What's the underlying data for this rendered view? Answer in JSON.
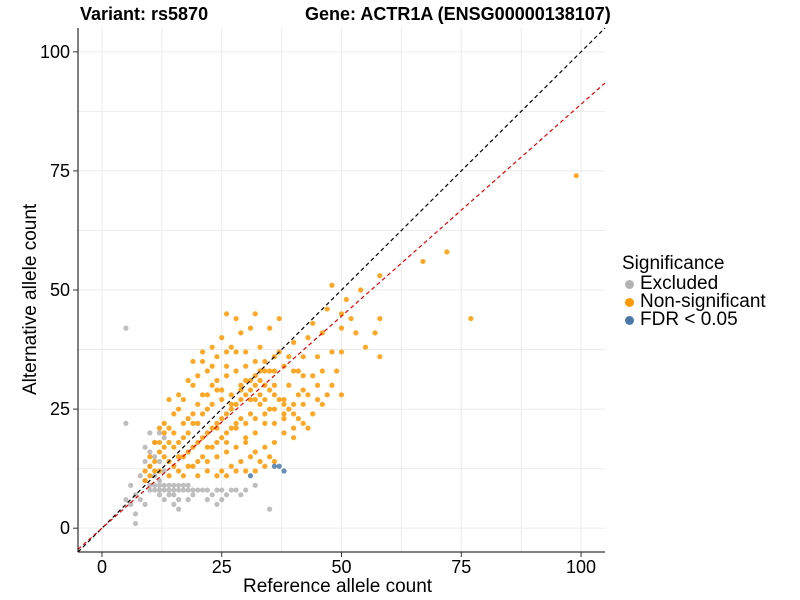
{
  "chart_data": {
    "type": "scatter",
    "title_left": "Variant: rs5870",
    "title_right": "Gene: ACTR1A (ENSG00000138107)",
    "xlabel": "Reference allele count",
    "ylabel": "Alternative allele count",
    "xlim": [
      -5,
      105
    ],
    "ylim": [
      -5,
      105
    ],
    "xticks": [
      0,
      25,
      50,
      75,
      100
    ],
    "yticks": [
      0,
      25,
      50,
      75,
      100
    ],
    "grid": true,
    "legend": {
      "title": "Significance",
      "placement": "right",
      "items": [
        {
          "label": "Excluded",
          "color": "#b3b3b3"
        },
        {
          "label": "Non-significant",
          "color": "#ff9900"
        },
        {
          "label": "FDR < 0.05",
          "color": "#4a79a9"
        }
      ]
    },
    "reference_lines": [
      {
        "name": "identity",
        "slope": 1.0,
        "intercept": 0,
        "color": "#000000",
        "dash": "dashed"
      },
      {
        "name": "fitted",
        "slope": 0.89,
        "intercept": 0,
        "color": "#ee0000",
        "dash": "dashed"
      }
    ],
    "series": [
      {
        "name": "Excluded",
        "color": "#b3b3b3",
        "points": [
          [
            5,
            42
          ],
          [
            5,
            22
          ],
          [
            5,
            6
          ],
          [
            6,
            5
          ],
          [
            7,
            3
          ],
          [
            7,
            1
          ],
          [
            8,
            11
          ],
          [
            6,
            9
          ],
          [
            7,
            7
          ],
          [
            8,
            6
          ],
          [
            9,
            5
          ],
          [
            9,
            10
          ],
          [
            10,
            8
          ],
          [
            10,
            9
          ],
          [
            11,
            9
          ],
          [
            12,
            8
          ],
          [
            12,
            9
          ],
          [
            13,
            9
          ],
          [
            13,
            8
          ],
          [
            14,
            9
          ],
          [
            14,
            8
          ],
          [
            15,
            9
          ],
          [
            15,
            8
          ],
          [
            16,
            9
          ],
          [
            16,
            8
          ],
          [
            17,
            9
          ],
          [
            17,
            8
          ],
          [
            18,
            9
          ],
          [
            18,
            8
          ],
          [
            19,
            8
          ],
          [
            20,
            8
          ],
          [
            21,
            8
          ],
          [
            22,
            8
          ],
          [
            15,
            7
          ],
          [
            16,
            6
          ],
          [
            15,
            5
          ],
          [
            16,
            4
          ],
          [
            11,
            11
          ],
          [
            12,
            10
          ],
          [
            9,
            14
          ],
          [
            10,
            16
          ],
          [
            9,
            17
          ],
          [
            11,
            15
          ],
          [
            10,
            13
          ],
          [
            13,
            12
          ],
          [
            12,
            14
          ],
          [
            10,
            20
          ],
          [
            11,
            18
          ],
          [
            12,
            20
          ],
          [
            13,
            19
          ],
          [
            14,
            7
          ],
          [
            18,
            6
          ],
          [
            19,
            7
          ],
          [
            22,
            6
          ],
          [
            23,
            7
          ],
          [
            24,
            8
          ],
          [
            25,
            8
          ],
          [
            26,
            7
          ],
          [
            27,
            8
          ],
          [
            28,
            8
          ],
          [
            29,
            7
          ],
          [
            30,
            8
          ],
          [
            32,
            9
          ],
          [
            25,
            6
          ],
          [
            24,
            5
          ],
          [
            35,
            4
          ],
          [
            12,
            7
          ],
          [
            11,
            8
          ],
          [
            13,
            6
          ]
        ]
      },
      {
        "name": "Non-significant",
        "color": "#ff9900",
        "points": [
          [
            99,
            74
          ],
          [
            77,
            44
          ],
          [
            72,
            58
          ],
          [
            67,
            56
          ],
          [
            58,
            53
          ],
          [
            58,
            44
          ],
          [
            58,
            36
          ],
          [
            57,
            41
          ],
          [
            55,
            38
          ],
          [
            54,
            50
          ],
          [
            53,
            41
          ],
          [
            52,
            44
          ],
          [
            50,
            42
          ],
          [
            48,
            51
          ],
          [
            50,
            45
          ],
          [
            51,
            48
          ],
          [
            50,
            37
          ],
          [
            49,
            33
          ],
          [
            48,
            37
          ],
          [
            47,
            46
          ],
          [
            46,
            41
          ],
          [
            45,
            36
          ],
          [
            44,
            43
          ],
          [
            43,
            40
          ],
          [
            42,
            36
          ],
          [
            42,
            32
          ],
          [
            41,
            28
          ],
          [
            40,
            39
          ],
          [
            40,
            33
          ],
          [
            39,
            30
          ],
          [
            38,
            34
          ],
          [
            38,
            27
          ],
          [
            37,
            44
          ],
          [
            36,
            36
          ],
          [
            36,
            30
          ],
          [
            35,
            42
          ],
          [
            35,
            25
          ],
          [
            34,
            33
          ],
          [
            34,
            22
          ],
          [
            33,
            38
          ],
          [
            33,
            28
          ],
          [
            32,
            45
          ],
          [
            32,
            35
          ],
          [
            32,
            20
          ],
          [
            31,
            42
          ],
          [
            31,
            27
          ],
          [
            30,
            37
          ],
          [
            30,
            19
          ],
          [
            29,
            41
          ],
          [
            29,
            30
          ],
          [
            28,
            44
          ],
          [
            28,
            22
          ],
          [
            27,
            38
          ],
          [
            27,
            26
          ],
          [
            26,
            45
          ],
          [
            26,
            34
          ],
          [
            26,
            18
          ],
          [
            25,
            40
          ],
          [
            25,
            29
          ],
          [
            24,
            36
          ],
          [
            24,
            21
          ],
          [
            23,
            38
          ],
          [
            23,
            30
          ],
          [
            22,
            33
          ],
          [
            22,
            25
          ],
          [
            22,
            17
          ],
          [
            21,
            35
          ],
          [
            21,
            28
          ],
          [
            20,
            32
          ],
          [
            20,
            22
          ],
          [
            20,
            14
          ],
          [
            19,
            30
          ],
          [
            19,
            24
          ],
          [
            18,
            31
          ],
          [
            18,
            20
          ],
          [
            18,
            13
          ],
          [
            17,
            27
          ],
          [
            17,
            22
          ],
          [
            16,
            28
          ],
          [
            16,
            18
          ],
          [
            15,
            24
          ],
          [
            15,
            17
          ],
          [
            14,
            27
          ],
          [
            14,
            21
          ],
          [
            14,
            14
          ],
          [
            13,
            22
          ],
          [
            13,
            17
          ],
          [
            12,
            21
          ],
          [
            12,
            16
          ],
          [
            11,
            18
          ],
          [
            11,
            14
          ],
          [
            10,
            15
          ],
          [
            10,
            11
          ],
          [
            9,
            12
          ],
          [
            16,
            12
          ],
          [
            17,
            15
          ],
          [
            18,
            16
          ],
          [
            19,
            17
          ],
          [
            20,
            18
          ],
          [
            21,
            19
          ],
          [
            22,
            20
          ],
          [
            23,
            21
          ],
          [
            24,
            22
          ],
          [
            25,
            23
          ],
          [
            26,
            24
          ],
          [
            27,
            25
          ],
          [
            28,
            26
          ],
          [
            29,
            27
          ],
          [
            30,
            28
          ],
          [
            31,
            29
          ],
          [
            32,
            30
          ],
          [
            33,
            31
          ],
          [
            34,
            30
          ],
          [
            35,
            29
          ],
          [
            36,
            28
          ],
          [
            37,
            27
          ],
          [
            38,
            26
          ],
          [
            39,
            25
          ],
          [
            40,
            24
          ],
          [
            41,
            23
          ],
          [
            42,
            22
          ],
          [
            43,
            21
          ],
          [
            44,
            24
          ],
          [
            45,
            27
          ],
          [
            46,
            26
          ],
          [
            47,
            28
          ],
          [
            22,
            14
          ],
          [
            24,
            15
          ],
          [
            26,
            16
          ],
          [
            28,
            17
          ],
          [
            30,
            18
          ],
          [
            32,
            16
          ],
          [
            34,
            17
          ],
          [
            36,
            18
          ],
          [
            38,
            20
          ],
          [
            40,
            19
          ],
          [
            25,
            12
          ],
          [
            27,
            13
          ],
          [
            29,
            14
          ],
          [
            31,
            15
          ],
          [
            33,
            14
          ],
          [
            35,
            15
          ],
          [
            24,
            18
          ],
          [
            26,
            20
          ],
          [
            28,
            21
          ],
          [
            30,
            22
          ],
          [
            32,
            23
          ],
          [
            34,
            24
          ],
          [
            36,
            22
          ],
          [
            38,
            23
          ],
          [
            40,
            21
          ],
          [
            23,
            26
          ],
          [
            25,
            27
          ],
          [
            27,
            28
          ],
          [
            29,
            29
          ],
          [
            31,
            31
          ],
          [
            33,
            33
          ],
          [
            21,
            24
          ],
          [
            19,
            22
          ],
          [
            17,
            19
          ],
          [
            15,
            20
          ],
          [
            13,
            15
          ],
          [
            12,
            12
          ],
          [
            14,
            11
          ],
          [
            16,
            15
          ],
          [
            20,
            26
          ],
          [
            22,
            28
          ],
          [
            24,
            31
          ],
          [
            26,
            32
          ],
          [
            28,
            33
          ],
          [
            30,
            34
          ],
          [
            32,
            32
          ],
          [
            34,
            35
          ],
          [
            36,
            33
          ],
          [
            44,
            32
          ],
          [
            46,
            33
          ],
          [
            48,
            30
          ],
          [
            50,
            28
          ],
          [
            43,
            28
          ],
          [
            42,
            26
          ],
          [
            41,
            33
          ],
          [
            39,
            36
          ],
          [
            37,
            37
          ],
          [
            35,
            33
          ],
          [
            33,
            26
          ],
          [
            31,
            24
          ],
          [
            29,
            23
          ],
          [
            27,
            21
          ],
          [
            25,
            19
          ],
          [
            23,
            17
          ],
          [
            21,
            15
          ],
          [
            19,
            13
          ],
          [
            17,
            11
          ],
          [
            20,
            11
          ],
          [
            22,
            12
          ],
          [
            24,
            11
          ],
          [
            26,
            11
          ],
          [
            28,
            12
          ],
          [
            30,
            12
          ],
          [
            32,
            12
          ],
          [
            34,
            13
          ],
          [
            36,
            14
          ],
          [
            15,
            13
          ],
          [
            18,
            23
          ],
          [
            16,
            25
          ],
          [
            14,
            18
          ],
          [
            13,
            20
          ],
          [
            12,
            18
          ],
          [
            11,
            12
          ],
          [
            10,
            13
          ],
          [
            9,
            10
          ],
          [
            19,
            35
          ],
          [
            21,
            37
          ],
          [
            23,
            34
          ],
          [
            24,
            29
          ],
          [
            26,
            37
          ],
          [
            28,
            37
          ],
          [
            30,
            31
          ],
          [
            32,
            27
          ],
          [
            34,
            27
          ],
          [
            36,
            25
          ],
          [
            38,
            24
          ],
          [
            40,
            26
          ],
          [
            42,
            29
          ],
          [
            45,
            30
          ]
        ]
      },
      {
        "name": "FDR < 0.05",
        "color": "#4a79a9",
        "points": [
          [
            31,
            11
          ],
          [
            36,
            13
          ],
          [
            37,
            13
          ],
          [
            38,
            12
          ]
        ]
      }
    ]
  }
}
